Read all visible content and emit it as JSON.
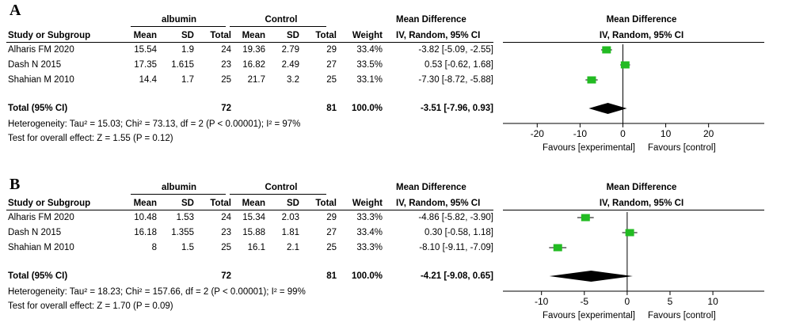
{
  "chart_data": [
    {
      "type": "forest",
      "panel_label": "A",
      "headers": {
        "group1": "albumin",
        "group2": "Control",
        "col_study": "Study or Subgroup",
        "col_mean": "Mean",
        "col_sd": "SD",
        "col_total": "Total",
        "col_weight": "Weight",
        "md_title": "Mean Difference",
        "md_sub": "IV, Random, 95% CI",
        "plot_title": "Mean Difference",
        "plot_sub": "IV, Random, 95% CI"
      },
      "studies": [
        {
          "name": "Alharis FM 2020",
          "mean1": "15.54",
          "sd1": "1.9",
          "n1": "24",
          "mean2": "19.36",
          "sd2": "2.79",
          "n2": "29",
          "weight": "33.4%",
          "ci_text": "-3.82 [-5.09, -2.55]",
          "md": -3.82,
          "lo": -5.09,
          "hi": -2.55
        },
        {
          "name": "Dash N 2015",
          "mean1": "17.35",
          "sd1": "1.615",
          "n1": "23",
          "mean2": "16.82",
          "sd2": "2.49",
          "n2": "27",
          "weight": "33.5%",
          "ci_text": "0.53 [-0.62, 1.68]",
          "md": 0.53,
          "lo": -0.62,
          "hi": 1.68
        },
        {
          "name": "Shahian M 2010",
          "mean1": "14.4",
          "sd1": "1.7",
          "n1": "25",
          "mean2": "21.7",
          "sd2": "3.2",
          "n2": "25",
          "weight": "33.1%",
          "ci_text": "-7.30 [-8.72, -5.88]",
          "md": -7.3,
          "lo": -8.72,
          "hi": -5.88
        }
      ],
      "total": {
        "label": "Total (95% CI)",
        "n1": "72",
        "n2": "81",
        "weight": "100.0%",
        "ci_text": "-3.51 [-7.96, 0.93]",
        "md": -3.51,
        "lo": -7.96,
        "hi": 0.93
      },
      "heterogeneity": "Heterogeneity: Tau² = 15.03; Chi² = 73.13, df = 2 (P < 0.00001); I² = 97%",
      "overall_effect": "Test for overall effect: Z = 1.55 (P = 0.12)",
      "axis": {
        "min": -28,
        "max": 33,
        "ticks": [
          -20,
          -10,
          0,
          10,
          20
        ],
        "tick_labels": [
          "-20",
          "-10",
          "0",
          "10",
          "20"
        ]
      },
      "favours_left": "Favours [experimental]",
      "favours_right": "Favours [control]"
    },
    {
      "type": "forest",
      "panel_label": "B",
      "headers": {
        "group1": "albumin",
        "group2": "Control",
        "col_study": "Study or Subgroup",
        "col_mean": "Mean",
        "col_sd": "SD",
        "col_total": "Total",
        "col_weight": "Weight",
        "md_title": "Mean Difference",
        "md_sub": "IV, Random, 95% CI",
        "plot_title": "Mean Difference",
        "plot_sub": "IV, Random, 95% CI"
      },
      "studies": [
        {
          "name": "Alharis FM 2020",
          "mean1": "10.48",
          "sd1": "1.53",
          "n1": "24",
          "mean2": "15.34",
          "sd2": "2.03",
          "n2": "29",
          "weight": "33.3%",
          "ci_text": "-4.86 [-5.82, -3.90]",
          "md": -4.86,
          "lo": -5.82,
          "hi": -3.9
        },
        {
          "name": "Dash N 2015",
          "mean1": "16.18",
          "sd1": "1.355",
          "n1": "23",
          "mean2": "15.88",
          "sd2": "1.81",
          "n2": "27",
          "weight": "33.4%",
          "ci_text": "0.30 [-0.58, 1.18]",
          "md": 0.3,
          "lo": -0.58,
          "hi": 1.18
        },
        {
          "name": "Shahian M 2010",
          "mean1": "8",
          "sd1": "1.5",
          "n1": "25",
          "mean2": "16.1",
          "sd2": "2.1",
          "n2": "25",
          "weight": "33.3%",
          "ci_text": "-8.10 [-9.11, -7.09]",
          "md": -8.1,
          "lo": -9.11,
          "hi": -7.09
        }
      ],
      "total": {
        "label": "Total (95% CI)",
        "n1": "72",
        "n2": "81",
        "weight": "100.0%",
        "ci_text": "-4.21 [-9.08, 0.65]",
        "md": -4.21,
        "lo": -9.08,
        "hi": 0.65
      },
      "heterogeneity": "Heterogeneity: Tau² = 18.23; Chi² = 157.66, df = 2 (P < 0.00001); I² = 99%",
      "overall_effect": "Test for overall effect: Z = 1.70 (P = 0.09)",
      "axis": {
        "min": -14.5,
        "max": 16,
        "ticks": [
          -10,
          -5,
          0,
          5,
          10
        ],
        "tick_labels": [
          "-10",
          "-5",
          "0",
          "5",
          "10"
        ]
      },
      "favours_left": "Favours [experimental]",
      "favours_right": "Favours [control]"
    }
  ],
  "colors": {
    "study_marker": "#22bb22",
    "diamond": "#000000"
  }
}
